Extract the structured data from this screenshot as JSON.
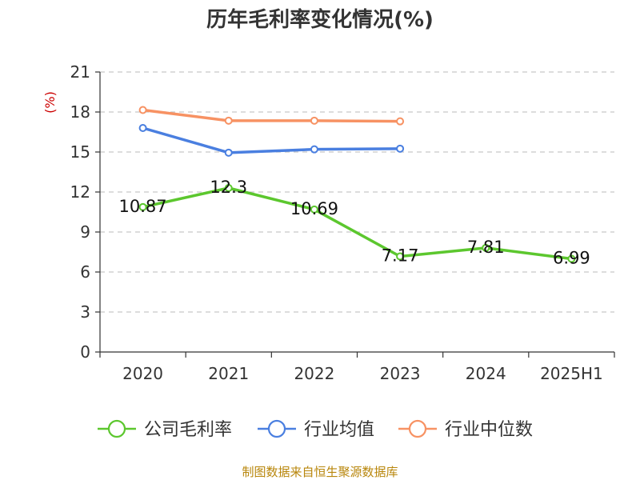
{
  "chart_data": {
    "type": "line",
    "title": "历年毛利率变化情况(%)",
    "ylabel": "(%)",
    "xlabel": "",
    "categories": [
      "2020",
      "2021",
      "2022",
      "2023",
      "2024",
      "2025H1"
    ],
    "yticks": [
      "0",
      "3",
      "6",
      "9",
      "12",
      "15",
      "18",
      "21"
    ],
    "ylim": [
      0,
      21
    ],
    "grid": true,
    "legend_position": "bottom",
    "series": [
      {
        "name": "公司毛利率",
        "color": "#5cc72e",
        "values": [
          10.87,
          12.3,
          10.69,
          7.17,
          7.81,
          6.99
        ],
        "labels": [
          "10.87",
          "12.3",
          "10.69",
          "7.17",
          "7.81",
          "6.99"
        ]
      },
      {
        "name": "行业均值",
        "color": "#4a7fe0",
        "values": [
          16.8,
          14.95,
          15.2,
          15.25,
          null,
          null
        ]
      },
      {
        "name": "行业中位数",
        "color": "#f79263",
        "values": [
          18.15,
          17.35,
          17.35,
          17.3,
          null,
          null
        ]
      }
    ]
  },
  "source_text": "制图数据来自恒生聚源数据库"
}
